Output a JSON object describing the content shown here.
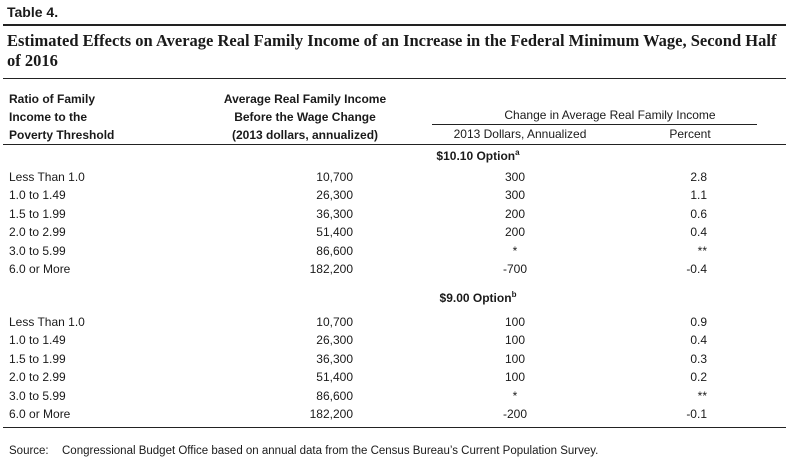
{
  "table_tag": "Table 4.",
  "title": "Estimated Effects on Average Real Family Income of an Increase in the Federal Minimum Wage, Second Half of 2016",
  "headers": {
    "ratio": [
      "Ratio of Family",
      "Income to the",
      "Poverty Threshold"
    ],
    "avg_income": [
      "Average Real Family Income",
      "Before the Wage Change",
      "(2013 dollars, annualized)"
    ],
    "change_group": "Change in Average Real Family Income",
    "change_dollars": "2013 Dollars, Annualized",
    "change_percent": "Percent"
  },
  "options": [
    {
      "name": "$10.10 Option",
      "note": "a",
      "rows": [
        {
          "ratio": "Less Than 1.0",
          "avg": "10,700",
          "change": "300",
          "pct": "2.8"
        },
        {
          "ratio": "1.0 to 1.49",
          "avg": "26,300",
          "change": "300",
          "pct": "1.1"
        },
        {
          "ratio": "1.5 to 1.99",
          "avg": "36,300",
          "change": "200",
          "pct": "0.6"
        },
        {
          "ratio": "2.0 to 2.99",
          "avg": "51,400",
          "change": "200",
          "pct": "0.4"
        },
        {
          "ratio": "3.0 to 5.99",
          "avg": "86,600",
          "change": "*",
          "pct": "**"
        },
        {
          "ratio": "6.0 or More",
          "avg": "182,200",
          "change": "-700",
          "pct": "-0.4"
        }
      ]
    },
    {
      "name": "$9.00 Option",
      "note": "b",
      "rows": [
        {
          "ratio": "Less Than 1.0",
          "avg": "10,700",
          "change": "100",
          "pct": "0.9"
        },
        {
          "ratio": "1.0 to 1.49",
          "avg": "26,300",
          "change": "100",
          "pct": "0.4"
        },
        {
          "ratio": "1.5 to 1.99",
          "avg": "36,300",
          "change": "100",
          "pct": "0.3"
        },
        {
          "ratio": "2.0 to 2.99",
          "avg": "51,400",
          "change": "100",
          "pct": "0.2"
        },
        {
          "ratio": "3.0 to 5.99",
          "avg": "86,600",
          "change": "*",
          "pct": "**"
        },
        {
          "ratio": "6.0 or More",
          "avg": "182,200",
          "change": "-200",
          "pct": "-0.1"
        }
      ]
    }
  ],
  "source": {
    "label": "Source:",
    "text": "Congressional Budget Office based on annual data from the Census Bureau’s Current Population Survey."
  }
}
